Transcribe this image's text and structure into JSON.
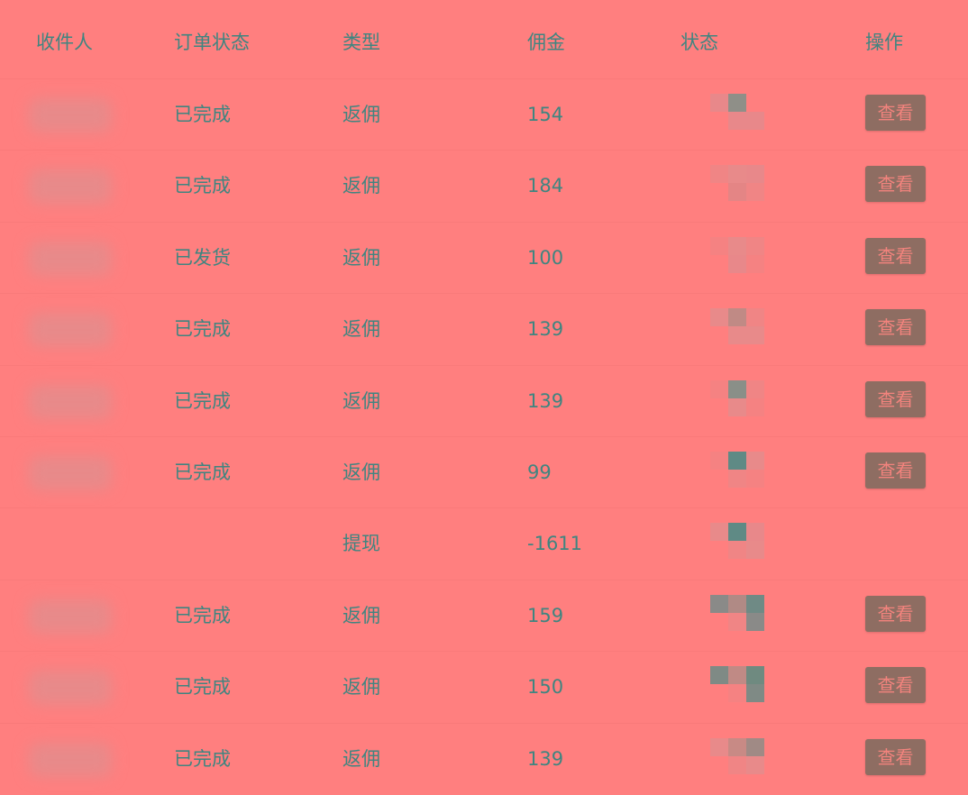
{
  "colors": {
    "background": "#ff7f7f",
    "text": "#3f8580",
    "button_bg": "#8e6d62",
    "button_text": "#f2837d"
  },
  "header": [
    "收件人",
    "订单状态",
    "类型",
    "佣金",
    "状态",
    "操作"
  ],
  "rows": [
    {
      "order_status": "已完成",
      "type": "返佣",
      "commission": "154",
      "action": "查看"
    },
    {
      "order_status": "已完成",
      "type": "返佣",
      "commission": "184",
      "action": "查看"
    },
    {
      "order_status": "已发货",
      "type": "返佣",
      "commission": "100",
      "action": "查看"
    },
    {
      "order_status": "已完成",
      "type": "返佣",
      "commission": "139",
      "action": "查看"
    },
    {
      "order_status": "已完成",
      "type": "返佣",
      "commission": "139",
      "action": "查看"
    },
    {
      "order_status": "已完成",
      "type": "返佣",
      "commission": "99",
      "action": "查看"
    },
    {
      "order_status": "",
      "type": "提现",
      "commission": "-1611",
      "action": ""
    },
    {
      "order_status": "已完成",
      "type": "返佣",
      "commission": "159",
      "action": "查看"
    },
    {
      "order_status": "已完成",
      "type": "返佣",
      "commission": "150",
      "action": "查看"
    },
    {
      "order_status": "已完成",
      "type": "返佣",
      "commission": "139",
      "action": "查看"
    }
  ]
}
